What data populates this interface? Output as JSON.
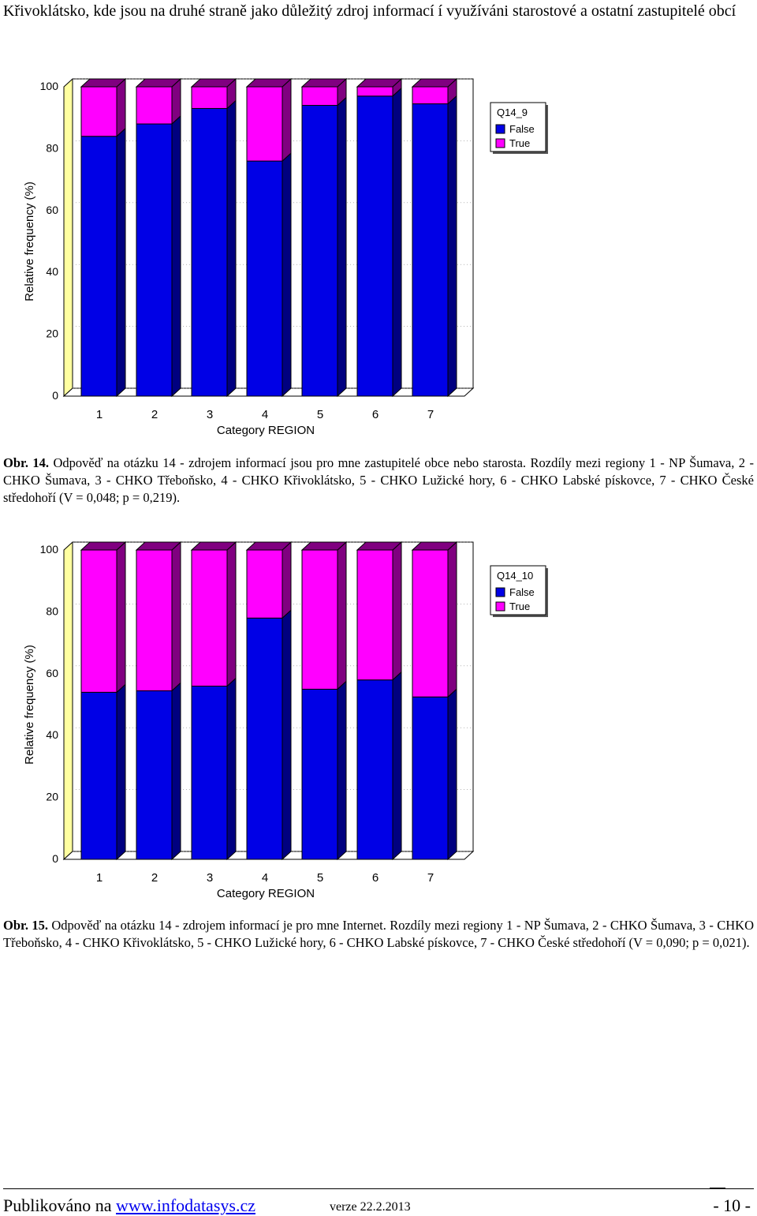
{
  "intro_text": "Křivoklátsko, kde jsou na druhé straně jako důležitý zdroj informací í využíváni starostové a ostatní zastupitelé obcí",
  "colors": {
    "false": "#0000e6",
    "true": "#ff00ff",
    "false_side": "#000080",
    "true_side": "#800080",
    "wall": "#ffffa0"
  },
  "chart_data": [
    {
      "type": "bar",
      "stacked": true,
      "legend_title": "Q14_9",
      "xlabel": "Category REGION",
      "ylabel": "Relative frequency (%)",
      "ylim": [
        0,
        100
      ],
      "yticks": [
        "0",
        "20",
        "40",
        "60",
        "80",
        "100"
      ],
      "categories": [
        "1",
        "2",
        "3",
        "4",
        "5",
        "6",
        "7"
      ],
      "series": [
        {
          "name": "False",
          "values": [
            84,
            88,
            93,
            76,
            94,
            97,
            94.5
          ]
        },
        {
          "name": "True",
          "values": [
            16,
            12,
            7,
            24,
            6,
            3,
            5.5
          ]
        }
      ],
      "legend_position": "top-right",
      "grid": true
    },
    {
      "type": "bar",
      "stacked": true,
      "legend_title": "Q14_10",
      "xlabel": "Category REGION",
      "ylabel": "Relative frequency (%)",
      "ylim": [
        0,
        100
      ],
      "yticks": [
        "0",
        "20",
        "40",
        "60",
        "80",
        "100"
      ],
      "categories": [
        "1",
        "2",
        "3",
        "4",
        "5",
        "6",
        "7"
      ],
      "series": [
        {
          "name": "False",
          "values": [
            54,
            54.5,
            56,
            78,
            55,
            58,
            52.5
          ]
        },
        {
          "name": "True",
          "values": [
            46,
            45.5,
            44,
            22,
            45,
            42,
            47.5
          ]
        }
      ],
      "legend_position": "top-right",
      "grid": true
    }
  ],
  "caption1": {
    "label": "Obr. 14.",
    "text": " Odpověď na otázku 14 - zdrojem informací jsou pro mne zastupitelé obce nebo starosta. Rozdíly mezi regiony 1 - NP Šumava, 2 - CHKO Šumava, 3 - CHKO Třeboňsko, 4 - CHKO Křivoklátsko, 5 - CHKO Lužické hory, 6 - CHKO Labské pískovce, 7 - CHKO České středohoří (V = 0,048; p = 0,219)."
  },
  "caption2": {
    "label": "Obr. 15.",
    "text": " Odpověď na otázku 14 - zdrojem informací je pro mne Internet. Rozdíly mezi regiony 1 - NP Šumava, 2 - CHKO Šumava, 3 - CHKO Třeboňsko, 4 - CHKO Křivoklátsko, 5 - CHKO Lužické hory, 6 - CHKO Labské pískovce, 7 - CHKO České středohoří (V = 0,090; p = 0,021)."
  },
  "footer": {
    "published": "Publikováno na ",
    "link": "www.infodatasys.cz",
    "version": "verze 22.2.2013",
    "page": "- 10 -"
  }
}
